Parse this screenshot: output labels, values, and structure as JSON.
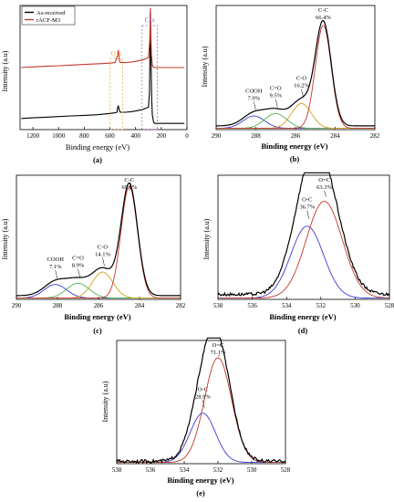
{
  "chart_data": [
    {
      "type": "line",
      "panel_label": "(a)",
      "xlabel": "Binding energy (eV)",
      "ylabel": "Intensity (a.u)",
      "xlim": [
        1300,
        0
      ],
      "xticks": [
        1200,
        1000,
        800,
        600,
        400,
        200,
        0
      ],
      "ylim": [
        0,
        1
      ],
      "legend": {
        "placement": "top-left",
        "entries": [
          "As-received",
          "rACF-M3"
        ]
      },
      "annotations": [
        "O1s",
        "C1s"
      ],
      "series": [
        {
          "name": "As-received",
          "color": "#000000",
          "x": [
            1290,
            1200,
            1100,
            1000,
            900,
            800,
            700,
            600,
            560,
            545,
            540,
            534,
            528,
            520,
            480,
            430,
            400,
            350,
            300,
            292,
            288,
            285,
            282,
            275,
            270,
            260,
            250,
            230,
            200,
            120,
            20
          ],
          "y": [
            0.09,
            0.095,
            0.1,
            0.105,
            0.11,
            0.115,
            0.12,
            0.13,
            0.135,
            0.14,
            0.18,
            0.19,
            0.16,
            0.14,
            0.14,
            0.145,
            0.15,
            0.16,
            0.18,
            0.3,
            0.65,
            0.95,
            0.7,
            0.25,
            0.12,
            0.06,
            0.05,
            0.05,
            0.05,
            0.05,
            0.05
          ]
        },
        {
          "name": "rACF-M3",
          "color": "#c0392b",
          "x": [
            1290,
            1200,
            1100,
            1000,
            900,
            800,
            700,
            600,
            560,
            540,
            534,
            528,
            520,
            480,
            430,
            400,
            350,
            300,
            290,
            286,
            284,
            282,
            276,
            270,
            260,
            250,
            230,
            200,
            120,
            20
          ],
          "y": [
            0.5,
            0.505,
            0.51,
            0.515,
            0.52,
            0.525,
            0.53,
            0.535,
            0.54,
            0.6,
            0.64,
            0.57,
            0.54,
            0.54,
            0.545,
            0.55,
            0.56,
            0.58,
            0.72,
            0.9,
            0.98,
            0.8,
            0.6,
            0.52,
            0.5,
            0.5,
            0.5,
            0.5,
            0.5,
            0.5
          ]
        }
      ]
    },
    {
      "type": "line",
      "panel_label": "(b)",
      "xlabel": "Binding energy (eV)",
      "ylabel": "Intensity (a.u)",
      "xlim": [
        290,
        282
      ],
      "xticks": [
        290,
        288,
        286,
        284,
        282
      ],
      "ylim": [
        0,
        1
      ],
      "peaks": [
        {
          "label": "COOH",
          "percent": "7.9%",
          "center": 288.1,
          "height": 0.1,
          "width": 0.55,
          "color": "#3a3ad6"
        },
        {
          "label": "C=O",
          "percent": "9.5%",
          "center": 287.0,
          "height": 0.12,
          "width": 0.55,
          "color": "#4caf50"
        },
        {
          "label": "C-O",
          "percent": "16.2%",
          "center": 285.7,
          "height": 0.2,
          "width": 0.5,
          "color": "#d4a017"
        },
        {
          "label": "C-C",
          "percent": "66.4%",
          "center": 284.6,
          "height": 0.83,
          "width": 0.4,
          "color": "#c0392b"
        }
      ],
      "envelope_baseline": 0.03
    },
    {
      "type": "line",
      "panel_label": "(c)",
      "xlabel": "Binding energy (eV)",
      "ylabel": "Intensity (a.u)",
      "xlim": [
        290,
        282
      ],
      "xticks": [
        290,
        288,
        286,
        284,
        282
      ],
      "ylim": [
        0,
        1
      ],
      "peaks": [
        {
          "label": "COOH",
          "percent": "7.1%",
          "center": 288.1,
          "height": 0.11,
          "width": 0.55,
          "color": "#3a3ad6"
        },
        {
          "label": "C=O",
          "percent": "8.9%",
          "center": 287.0,
          "height": 0.12,
          "width": 0.55,
          "color": "#4caf50"
        },
        {
          "label": "C-O",
          "percent": "14.1%",
          "center": 285.8,
          "height": 0.21,
          "width": 0.5,
          "color": "#d4a017"
        },
        {
          "label": "C-C",
          "percent": "69.9%",
          "center": 284.5,
          "height": 0.9,
          "width": 0.4,
          "color": "#c0392b"
        }
      ],
      "envelope_baseline": 0.03
    },
    {
      "type": "line",
      "panel_label": "(d)",
      "xlabel": "Binding energy (eV)",
      "ylabel": "Intensity (a.u)",
      "xlim": [
        538,
        528
      ],
      "xticks": [
        538,
        536,
        534,
        532,
        530,
        528
      ],
      "ylim": [
        0,
        1
      ],
      "peaks": [
        {
          "label": "O-C",
          "percent": "36.7%",
          "center": 532.8,
          "height": 0.58,
          "width": 0.95,
          "color": "#3a3ad6"
        },
        {
          "label": "O=C",
          "percent": "63.3%",
          "center": 531.8,
          "height": 0.78,
          "width": 1.05,
          "color": "#c0392b"
        }
      ],
      "envelope_baseline": 0.04
    },
    {
      "type": "line",
      "panel_label": "(e)",
      "xlabel": "Binding energy (eV)",
      "ylabel": "Intensity (a.u)",
      "xlim": [
        538,
        528
      ],
      "xticks": [
        538,
        536,
        534,
        532,
        530,
        528
      ],
      "ylim": [
        0,
        1
      ],
      "peaks": [
        {
          "label": "O-C",
          "percent": "28.9%",
          "center": 532.9,
          "height": 0.4,
          "width": 0.75,
          "color": "#3a3ad6"
        },
        {
          "label": "O=C",
          "percent": "71.1%",
          "center": 532.0,
          "height": 0.85,
          "width": 0.8,
          "color": "#c0392b"
        }
      ],
      "envelope_baseline": 0.02
    }
  ]
}
